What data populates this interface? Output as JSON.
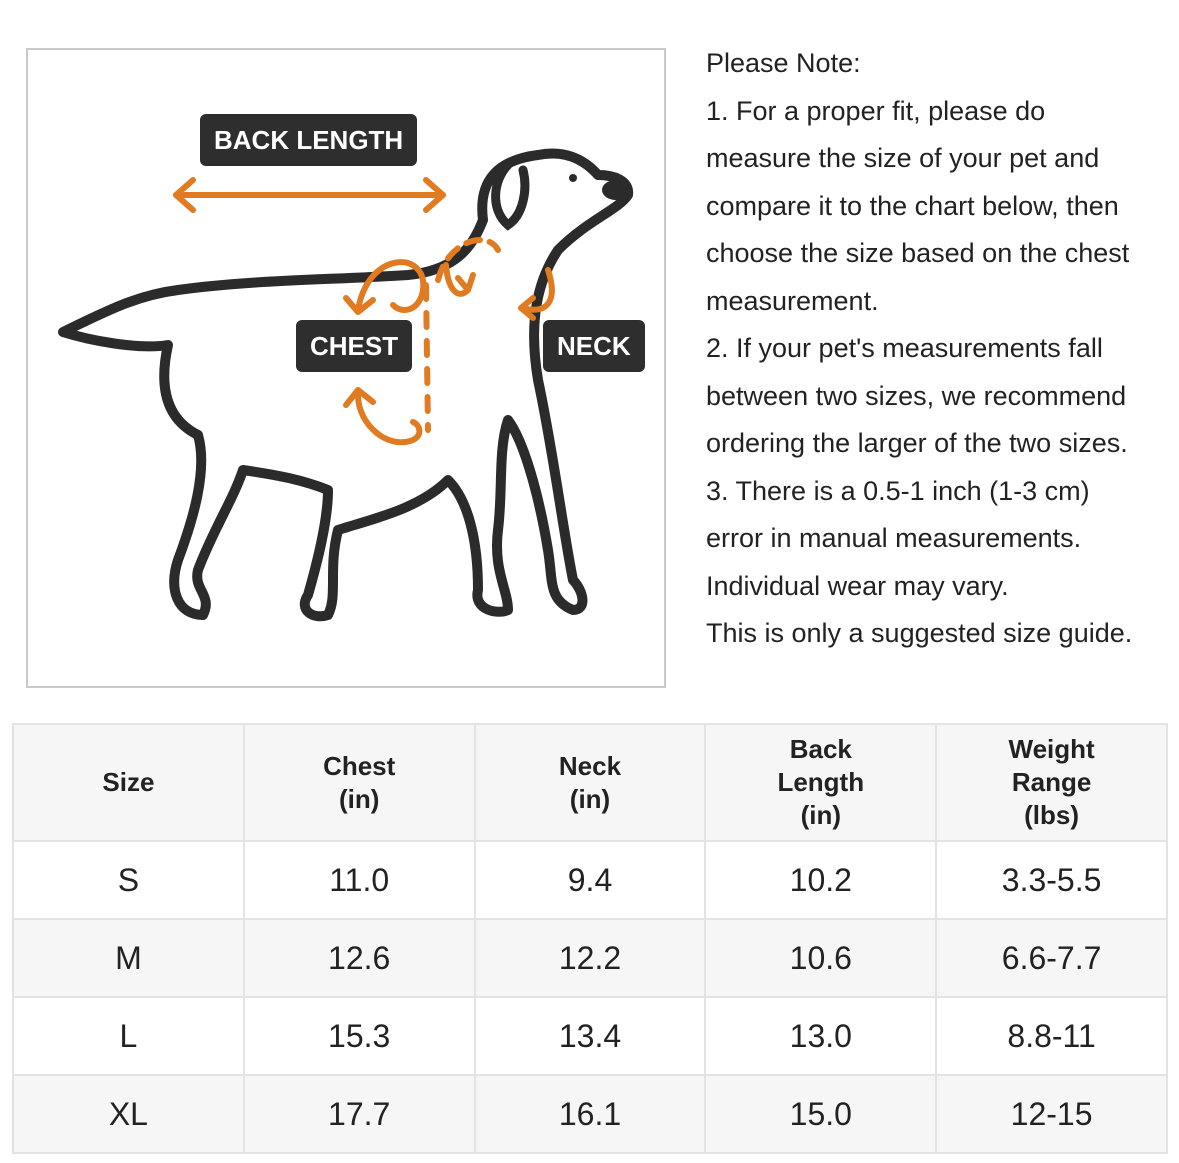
{
  "diagram": {
    "labels": {
      "back_length": "BACK LENGTH",
      "chest": "CHEST",
      "neck": "NECK"
    },
    "accent_color": "#e07b22",
    "outline_color": "#2b2b2b"
  },
  "note": {
    "lines": [
      "Please Note:",
      "1. For a proper fit, please do",
      "measure the size of your pet and",
      "compare it to the chart below, then",
      "choose the size based on the chest",
      "measurement.",
      "2. If your pet's measurements fall",
      "between two sizes, we recommend",
      "ordering the larger of the two sizes.",
      "3. There is a 0.5-1 inch (1-3 cm)",
      "error in manual measurements.",
      "Individual wear may vary.",
      "This is only a suggested size guide."
    ]
  },
  "table": {
    "headers": [
      [
        "Size"
      ],
      [
        "Chest",
        "(in)"
      ],
      [
        "Neck",
        "(in)"
      ],
      [
        "Back",
        "Length",
        "(in)"
      ],
      [
        "Weight",
        "Range",
        "(lbs)"
      ]
    ],
    "rows": [
      [
        "S",
        "11.0",
        "9.4",
        "10.2",
        "3.3-5.5"
      ],
      [
        "M",
        "12.6",
        "12.2",
        "10.6",
        "6.6-7.7"
      ],
      [
        "L",
        "15.3",
        "13.4",
        "13.0",
        "8.8-11"
      ],
      [
        "XL",
        "17.7",
        "16.1",
        "15.0",
        "12-15"
      ]
    ]
  }
}
